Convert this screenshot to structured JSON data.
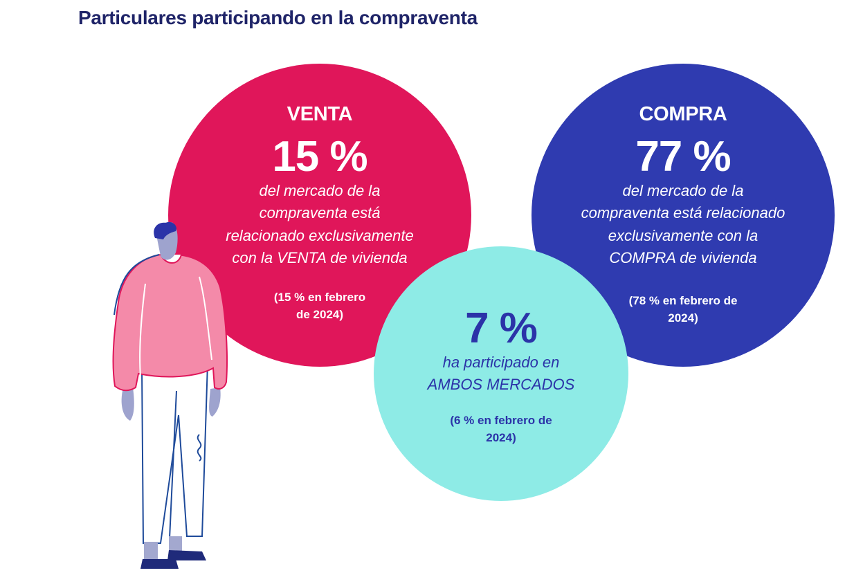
{
  "title": "Particulares participando en la compraventa",
  "venta": {
    "label": "VENTA",
    "value": "15 %",
    "desc_1": "del mercado de la",
    "desc_2": "compraventa está",
    "desc_3": "relacionado exclusivamente",
    "desc_4": "con la VENTA de vivienda",
    "note_1": "(15 % en febrero",
    "note_2": "de 2024)"
  },
  "compra": {
    "label": "COMPRA",
    "value": "77 %",
    "desc_1": "del mercado de la",
    "desc_2": "compraventa está relacionado",
    "desc_3": "exclusivamente con la",
    "desc_4": "COMPRA de vivienda",
    "note_1": "(78 % en febrero de",
    "note_2": "2024)"
  },
  "ambos": {
    "value": "7 %",
    "desc_1": "ha participado en",
    "desc_2": "AMBOS MERCADOS",
    "note_1": "(6 % en febrero de",
    "note_2": "2024)"
  },
  "colors": {
    "venta": "#e0165a",
    "compra": "#2f3bb0",
    "ambos": "#8eebe6",
    "title": "#1f2468"
  },
  "icons": [
    "person-illustration"
  ]
}
